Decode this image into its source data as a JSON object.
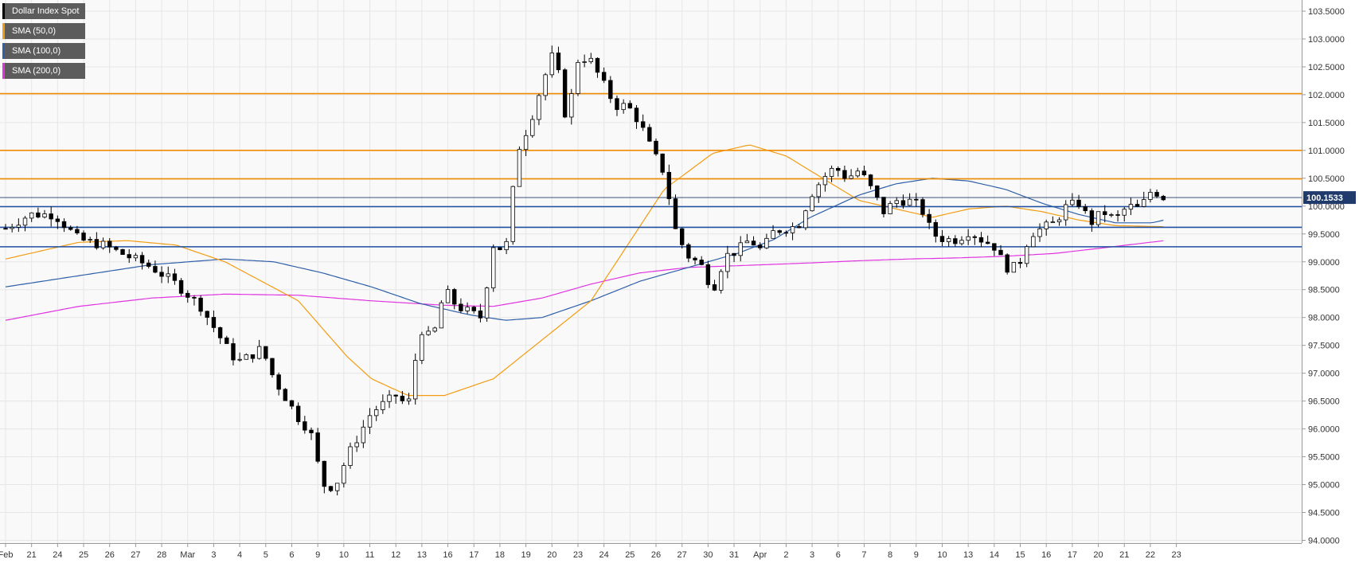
{
  "chart_data": {
    "type": "candlestick",
    "title": "",
    "colors": {
      "background": "#f9f9f9",
      "grid": "#e6e6e6",
      "candle_up": "#ffffff",
      "candle_down": "#000000",
      "sma50": "#f39c12",
      "sma100": "#2e5fa8",
      "sma200": "#e033e0",
      "resistance": "#f08c00",
      "support": "#1f4fa0",
      "current_line": "#1f3a6b",
      "price_tag": "#1f3a6b"
    },
    "legend": [
      {
        "label": "Dollar Index Spot",
        "color": "#000000"
      },
      {
        "label": "SMA (50,0)",
        "color": "#f39c12"
      },
      {
        "label": "SMA (100,0)",
        "color": "#2e5fa8"
      },
      {
        "label": "SMA (200,0)",
        "color": "#e033e0"
      }
    ],
    "ylim": [
      93.95,
      103.7
    ],
    "y_ticks": [
      "103.5000",
      "103.0000",
      "102.5000",
      "102.0000",
      "101.5000",
      "101.0000",
      "100.5000",
      "100.0000",
      "99.5000",
      "99.0000",
      "98.5000",
      "98.0000",
      "97.5000",
      "97.0000",
      "96.5000",
      "96.0000",
      "95.5000",
      "95.0000",
      "94.5000",
      "94.0000"
    ],
    "x_ticks": [
      "Feb",
      "21",
      "24",
      "25",
      "26",
      "27",
      "28",
      "Mar",
      "3",
      "4",
      "5",
      "6",
      "9",
      "10",
      "11",
      "12",
      "13",
      "16",
      "17",
      "18",
      "19",
      "20",
      "23",
      "24",
      "25",
      "26",
      "27",
      "30",
      "31",
      "Apr",
      "2",
      "3",
      "6",
      "7",
      "8",
      "9",
      "10",
      "13",
      "14",
      "15",
      "16",
      "17",
      "20",
      "21",
      "22",
      "23"
    ],
    "resistance_levels": [
      102.02,
      101.0,
      100.49
    ],
    "support_levels": [
      99.99,
      99.62,
      99.27
    ],
    "current_price": "100.1533",
    "current_value": 100.1533,
    "keypoints": [
      [
        0,
        99.6
      ],
      [
        2,
        99.85
      ],
      [
        4,
        99.85
      ],
      [
        6,
        99.4
      ],
      [
        8,
        99.3
      ],
      [
        10,
        99.1
      ],
      [
        12,
        98.9
      ],
      [
        14,
        98.6
      ],
      [
        16,
        98.2
      ],
      [
        18,
        97.5
      ],
      [
        19,
        97.2
      ],
      [
        20,
        97.3
      ],
      [
        21,
        97.45
      ],
      [
        22,
        96.9
      ],
      [
        24,
        96.2
      ],
      [
        25,
        95.95
      ],
      [
        26,
        95.0
      ],
      [
        27,
        94.95
      ],
      [
        28,
        95.5
      ],
      [
        30,
        96.3
      ],
      [
        32,
        96.6
      ],
      [
        33,
        96.4
      ],
      [
        34,
        97.8
      ],
      [
        35,
        97.6
      ],
      [
        36,
        98.5
      ],
      [
        37,
        98.2
      ],
      [
        38,
        98.1
      ],
      [
        39,
        98.0
      ],
      [
        40,
        99.3
      ],
      [
        41,
        99.2
      ],
      [
        42,
        101.0
      ],
      [
        43,
        101.5
      ],
      [
        44,
        102.2
      ],
      [
        45,
        102.8
      ],
      [
        46,
        101.5
      ],
      [
        47,
        102.7
      ],
      [
        48,
        102.6
      ],
      [
        49,
        102.2
      ],
      [
        50,
        101.8
      ],
      [
        51,
        101.8
      ],
      [
        52,
        101.5
      ],
      [
        53,
        101.0
      ],
      [
        54,
        100.6
      ],
      [
        55,
        99.5
      ],
      [
        56,
        99.1
      ],
      [
        57,
        98.95
      ],
      [
        58,
        98.5
      ],
      [
        59,
        99.1
      ],
      [
        60,
        99.2
      ],
      [
        61,
        99.4
      ],
      [
        62,
        99.2
      ],
      [
        63,
        99.55
      ],
      [
        64,
        99.6
      ],
      [
        65,
        99.65
      ],
      [
        66,
        100.2
      ],
      [
        67,
        100.5
      ],
      [
        68,
        100.7
      ],
      [
        69,
        100.5
      ],
      [
        70,
        100.65
      ],
      [
        71,
        100.3
      ],
      [
        72,
        99.9
      ],
      [
        73,
        100.1
      ],
      [
        74,
        100.1
      ],
      [
        75,
        100.0
      ],
      [
        76,
        99.5
      ],
      [
        77,
        99.4
      ],
      [
        78,
        99.4
      ],
      [
        79,
        99.55
      ],
      [
        80,
        99.4
      ],
      [
        81,
        99.3
      ],
      [
        82,
        98.9
      ],
      [
        83,
        98.9
      ],
      [
        84,
        99.5
      ],
      [
        85,
        99.6
      ],
      [
        86,
        99.7
      ],
      [
        87,
        100.0
      ],
      [
        88,
        100.05
      ],
      [
        89,
        99.7
      ],
      [
        90,
        99.9
      ],
      [
        91,
        99.75
      ],
      [
        92,
        100.0
      ],
      [
        93,
        99.95
      ],
      [
        94,
        100.3
      ],
      [
        95,
        100.15
      ]
    ],
    "sma50": [
      [
        0,
        99.05
      ],
      [
        6,
        99.35
      ],
      [
        10,
        99.38
      ],
      [
        14,
        99.3
      ],
      [
        18,
        99.0
      ],
      [
        24,
        98.3
      ],
      [
        28,
        97.3
      ],
      [
        30,
        96.9
      ],
      [
        33,
        96.6
      ],
      [
        36,
        96.6
      ],
      [
        40,
        96.9
      ],
      [
        44,
        97.6
      ],
      [
        48,
        98.3
      ],
      [
        51,
        99.3
      ],
      [
        54,
        100.3
      ],
      [
        58,
        100.95
      ],
      [
        61,
        101.1
      ],
      [
        64,
        100.9
      ],
      [
        67,
        100.5
      ],
      [
        70,
        100.1
      ],
      [
        73,
        99.95
      ],
      [
        76,
        99.8
      ],
      [
        79,
        99.95
      ],
      [
        82,
        100.0
      ],
      [
        85,
        99.9
      ],
      [
        88,
        99.75
      ],
      [
        91,
        99.65
      ],
      [
        95,
        99.63
      ]
    ],
    "sma100": [
      [
        0,
        98.55
      ],
      [
        6,
        98.75
      ],
      [
        12,
        98.95
      ],
      [
        18,
        99.05
      ],
      [
        22,
        99.0
      ],
      [
        26,
        98.8
      ],
      [
        30,
        98.55
      ],
      [
        34,
        98.25
      ],
      [
        38,
        98.05
      ],
      [
        41,
        97.95
      ],
      [
        44,
        98.0
      ],
      [
        48,
        98.3
      ],
      [
        52,
        98.65
      ],
      [
        56,
        98.9
      ],
      [
        60,
        99.15
      ],
      [
        63,
        99.4
      ],
      [
        66,
        99.8
      ],
      [
        70,
        100.2
      ],
      [
        73,
        100.4
      ],
      [
        76,
        100.5
      ],
      [
        79,
        100.45
      ],
      [
        82,
        100.3
      ],
      [
        85,
        100.05
      ],
      [
        88,
        99.85
      ],
      [
        91,
        99.7
      ],
      [
        94,
        99.7
      ],
      [
        95,
        99.75
      ]
    ],
    "sma200": [
      [
        0,
        97.95
      ],
      [
        6,
        98.2
      ],
      [
        12,
        98.35
      ],
      [
        18,
        98.42
      ],
      [
        24,
        98.4
      ],
      [
        30,
        98.3
      ],
      [
        36,
        98.22
      ],
      [
        40,
        98.2
      ],
      [
        44,
        98.35
      ],
      [
        48,
        98.6
      ],
      [
        52,
        98.8
      ],
      [
        56,
        98.9
      ],
      [
        60,
        98.93
      ],
      [
        66,
        98.98
      ],
      [
        70,
        99.02
      ],
      [
        74,
        99.05
      ],
      [
        78,
        99.07
      ],
      [
        82,
        99.1
      ],
      [
        86,
        99.15
      ],
      [
        90,
        99.25
      ],
      [
        95,
        99.38
      ]
    ]
  }
}
